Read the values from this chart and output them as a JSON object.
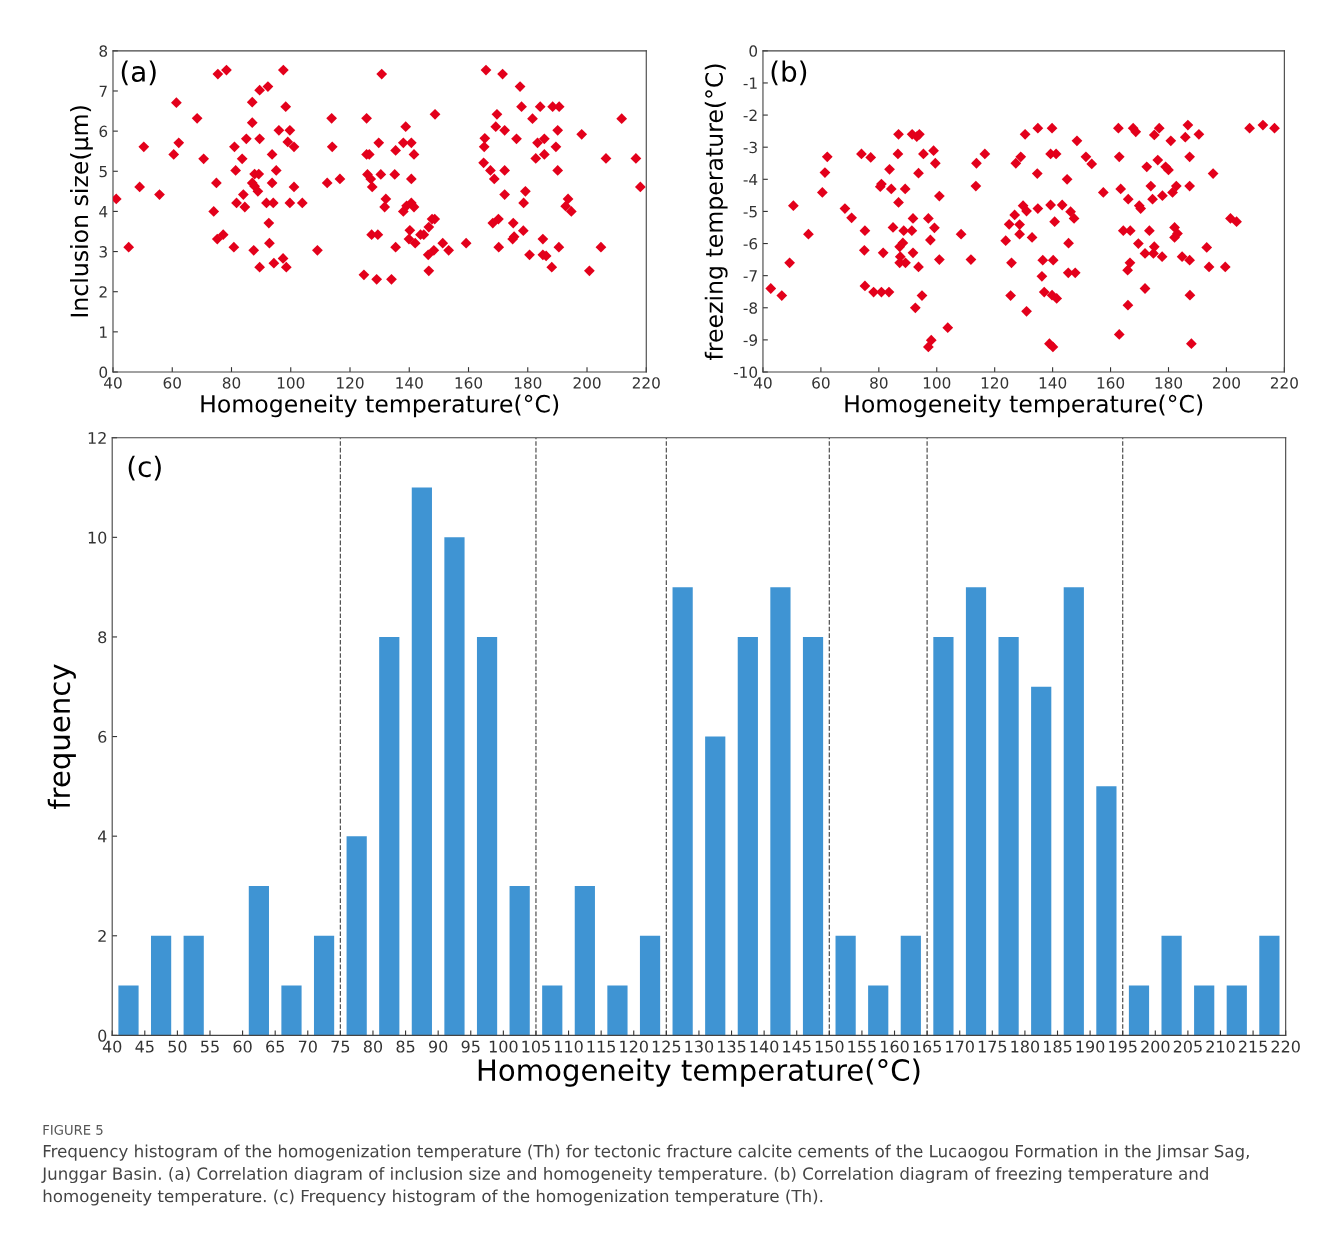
{
  "chart_data": [
    {
      "type": "scatter",
      "ylabel": "Inclusion size(μm)",
      "xlabel": "Homogeneity temperature(°C)",
      "annotations": [
        "(a)"
      ],
      "marker": "diamond",
      "grid": false,
      "xlim": [
        40,
        220
      ],
      "xticks": [
        40,
        60,
        80,
        100,
        120,
        140,
        160,
        180,
        200,
        220
      ],
      "ylim": [
        0,
        8
      ],
      "yticks": [
        0,
        1,
        2,
        3,
        4,
        5,
        6,
        7,
        8
      ],
      "series": [
        {
          "color": "#e3001b",
          "x": [
            41.1,
            45.3,
            49.0,
            50.4,
            55.7,
            60.5,
            61.4,
            62.2,
            68.4,
            70.6,
            74.0,
            74.9,
            75.2,
            75.4,
            77.2,
            78.3,
            80.8,
            81.0,
            81.4,
            81.7,
            83.6,
            84.0,
            84.5,
            85.0,
            87.0,
            87.0,
            87.0,
            87.5,
            87.8,
            87.8,
            88.9,
            89.2,
            89.5,
            89.5,
            89.5,
            91.8,
            92.3,
            92.6,
            92.8,
            93.7,
            93.7,
            94.1,
            94.3,
            95.1,
            96.0,
            97.4,
            97.5,
            98.3,
            98.5,
            99.0,
            99.7,
            99.7,
            101.1,
            101.1,
            103.9,
            109.0,
            112.3,
            113.8,
            114.0,
            116.6,
            124.7,
            125.6,
            125.6,
            126.5,
            125.9,
            127.0,
            127.5,
            127.3,
            129.4,
            129.0,
            130.7,
            129.7,
            130.4,
            135.4,
            135.1,
            132.1,
            131.7,
            135.4,
            134.0,
            138.8,
            138.0,
            140.7,
            141.6,
            140.7,
            138.0,
            139.1,
            140.7,
            141.6,
            140.2,
            139.9,
            142.0,
            143.8,
            144.9,
            146.6,
            147.7,
            148.6,
            146.4,
            148.3,
            146.6,
            151.3,
            153.3,
            159.2,
            148.7,
            165.9,
            171.5,
            177.4,
            177.9,
            184.2,
            188.4,
            190.6,
            181.6,
            169.6,
            169.2,
            172.2,
            176.2,
            165.5,
            165.3,
            183.3,
            185.6,
            189.5,
            190.1,
            182.7,
            185.6,
            165.1,
            167.4,
            168.7,
            172.2,
            190.1,
            198.2,
            211.7,
            206.4,
            216.5,
            218.0,
            172.2,
            179.2,
            178.6,
            193.6,
            192.8,
            194.7,
            168.2,
            170.1,
            175.1,
            178.5,
            175.4,
            174.9,
            170.2,
            185.1,
            180.6,
            185.1,
            186.2,
            190.5,
            188.1,
            204.7,
            200.8
          ],
          "values": [
            4.31,
            3.11,
            4.61,
            5.61,
            4.42,
            5.42,
            6.71,
            5.71,
            6.32,
            5.31,
            4.0,
            4.71,
            3.31,
            7.42,
            3.42,
            7.52,
            3.11,
            5.61,
            5.02,
            4.21,
            5.31,
            4.42,
            4.11,
            5.81,
            4.71,
            6.72,
            6.21,
            3.03,
            4.93,
            4.63,
            4.5,
            4.93,
            5.81,
            2.61,
            7.02,
            4.21,
            7.11,
            3.71,
            3.21,
            5.42,
            4.71,
            4.21,
            2.71,
            5.02,
            6.02,
            2.83,
            7.52,
            6.61,
            2.61,
            5.73,
            6.02,
            4.21,
            5.61,
            4.61,
            4.21,
            3.03,
            4.71,
            6.32,
            5.61,
            4.81,
            2.42,
            6.32,
            5.42,
            5.42,
            4.92,
            4.81,
            4.61,
            3.42,
            3.42,
            2.31,
            7.42,
            5.71,
            4.92,
            5.52,
            4.92,
            4.31,
            4.11,
            3.11,
            2.31,
            6.11,
            5.71,
            5.71,
            5.42,
            4.81,
            4.0,
            4.14,
            4.21,
            4.11,
            3.53,
            3.31,
            3.21,
            3.42,
            3.42,
            3.61,
            3.81,
            3.81,
            2.92,
            3.03,
            2.52,
            3.21,
            3.03,
            3.21,
            6.42,
            7.52,
            7.42,
            7.11,
            6.61,
            6.61,
            6.61,
            6.61,
            6.31,
            6.42,
            6.11,
            6.02,
            5.81,
            5.82,
            5.61,
            5.71,
            5.81,
            5.61,
            6.02,
            5.32,
            5.42,
            5.21,
            5.02,
            4.81,
            5.02,
            5.02,
            5.92,
            6.31,
            5.32,
            5.32,
            4.61,
            4.42,
            4.5,
            4.21,
            4.31,
            4.13,
            4.0,
            3.71,
            3.81,
            3.71,
            3.52,
            3.37,
            3.31,
            3.11,
            3.31,
            2.92,
            2.92,
            2.89,
            3.11,
            2.61,
            3.11,
            2.52
          ]
        }
      ]
    },
    {
      "type": "scatter",
      "ylabel": "freezing temperature(°C)",
      "xlabel": "Homogeneity temperature(°C)",
      "annotations": [
        "(b)"
      ],
      "marker": "diamond",
      "grid": false,
      "xlim": [
        40,
        220
      ],
      "xticks": [
        40,
        60,
        80,
        100,
        120,
        140,
        160,
        180,
        200,
        220
      ],
      "ylim": [
        -10,
        0
      ],
      "yticks": [
        -10,
        -9,
        -8,
        -7,
        -6,
        -5,
        -4,
        -3,
        -2,
        -1,
        0
      ],
      "series": [
        {
          "color": "#e3001b",
          "x": [
            42.7,
            46.5,
            49.2,
            50.5,
            55.7,
            60.5,
            61.4,
            62.2,
            68.3,
            70.6,
            74.0,
            77.2,
            75.2,
            75.0,
            75.2,
            78.2,
            80.9,
            83.5,
            80.9,
            80.5,
            81.5,
            83.7,
            84.3,
            84.9,
            86.8,
            86.6,
            86.8,
            87.2,
            87.4,
            87.2,
            88.6,
            88.3,
            89.1,
            89.2,
            91.5,
            93.1,
            94.0,
            91.4,
            91.8,
            91.8,
            93.7,
            93.7,
            95.4,
            97.1,
            97.8,
            98.9,
            99.5,
            99.2,
            100.9,
            100.9,
            94.9,
            92.6,
            98.1,
            97.1,
            103.8,
            108.4,
            111.8,
            113.5,
            113.7,
            116.6,
            130.5,
            129.0,
            127.3,
            129.8,
            131.0,
            126.9,
            125.0,
            128.6,
            123.8,
            128.6,
            125.8,
            125.5,
            131.0,
            134.9,
            139.8,
            134.7,
            139.3,
            141.2,
            148.4,
            151.5,
            153.5,
            145.0,
            134.9,
            139.3,
            143.3,
            140.7,
            146.2,
            147.4,
            132.9,
            145.5,
            136.6,
            140.2,
            136.3,
            145.4,
            147.8,
            137.1,
            139.8,
            141.4,
            138.9,
            140.1,
            157.5,
            162.7,
            163.0,
            163.5,
            166.1,
            169.9,
            170.4,
            167.8,
            168.7,
            175.1,
            176.8,
            180.8,
            185.8,
            186.7,
            190.5,
            187.3,
            172.5,
            176.3,
            179.0,
            180.0,
            195.4,
            173.9,
            182.7,
            187.3,
            174.5,
            177.9,
            181.4,
            201.4,
            203.5,
            164.4,
            166.8,
            173.4,
            182.1,
            183.1,
            182.1,
            169.6,
            171.9,
            174.8,
            175.1,
            177.8,
            184.7,
            187.3,
            193.2,
            194.0,
            199.6,
            166.7,
            165.9,
            171.9,
            166.0,
            187.4,
            163.0,
            187.9,
            208.0,
            212.6,
            216.6
          ],
          "values": [
            -7.4,
            -7.62,
            -6.6,
            -4.82,
            -5.71,
            -4.41,
            -3.79,
            -3.3,
            -4.91,
            -5.2,
            -3.21,
            -3.32,
            -5.6,
            -6.21,
            -7.32,
            -7.51,
            -7.51,
            -7.51,
            -4.15,
            -4.23,
            -6.29,
            -3.69,
            -4.3,
            -5.5,
            -2.6,
            -3.21,
            -4.72,
            -6.1,
            -6.41,
            -6.6,
            -5.6,
            -5.98,
            -4.3,
            -6.6,
            -2.6,
            -2.67,
            -2.6,
            -5.6,
            -5.22,
            -6.29,
            -3.81,
            -6.73,
            -3.21,
            -5.22,
            -5.89,
            -3.11,
            -3.5,
            -5.51,
            -4.52,
            -6.5,
            -7.62,
            -8.0,
            -9.01,
            -9.22,
            -8.62,
            -5.71,
            -6.5,
            -4.21,
            -3.5,
            -3.21,
            -2.6,
            -3.3,
            -3.5,
            -4.82,
            -4.99,
            -5.11,
            -5.4,
            -5.41,
            -5.91,
            -5.71,
            -6.6,
            -7.62,
            -8.11,
            -2.41,
            -2.41,
            -3.82,
            -3.21,
            -3.21,
            -2.8,
            -3.3,
            -3.52,
            -4.0,
            -4.91,
            -4.8,
            -4.8,
            -5.32,
            -5.01,
            -5.22,
            -5.81,
            -5.99,
            -6.52,
            -6.52,
            -7.02,
            -6.91,
            -6.91,
            -7.51,
            -7.61,
            -7.71,
            -9.12,
            -9.22,
            -4.41,
            -2.41,
            -3.3,
            -4.3,
            -4.62,
            -4.82,
            -4.91,
            -2.41,
            -2.52,
            -2.62,
            -2.41,
            -2.8,
            -2.69,
            -2.31,
            -2.6,
            -3.3,
            -3.61,
            -3.4,
            -3.61,
            -3.71,
            -3.82,
            -4.21,
            -4.21,
            -4.21,
            -4.62,
            -4.51,
            -4.41,
            -5.22,
            -5.32,
            -5.6,
            -5.6,
            -5.6,
            -5.5,
            -5.69,
            -5.81,
            -6.0,
            -6.31,
            -6.31,
            -6.1,
            -6.41,
            -6.41,
            -6.52,
            -6.12,
            -6.73,
            -6.73,
            -6.6,
            -6.83,
            -7.4,
            -7.92,
            -7.61,
            -8.83,
            -9.12,
            -2.41,
            -2.31,
            -2.41
          ]
        }
      ]
    },
    {
      "type": "histogram",
      "ylabel": "frequency",
      "xlabel": "Homogeneity temperature(°C)",
      "color": "#3f94d3",
      "grid": false,
      "annotations": [
        "(c)",
        "FIGURE 5",
        "Frequency histogram of the homogenization temperature (Th) for tectonic fracture calcite cements of the Lucaogou Formation in the Jimsar Sag, Junggar Basin. (a) Correlation diagram of inclusion size and homogeneity temperature. (b) Correlation diagram of freezing temperature and homogeneity temperature. (c) Frequency histogram of the homogenization temperature (Th)."
      ],
      "bins": [
        40,
        45,
        50,
        55,
        60,
        65,
        70,
        75,
        80,
        85,
        90,
        95,
        100,
        105,
        110,
        115,
        120,
        125,
        130,
        135,
        140,
        145,
        150,
        155,
        160,
        165,
        170,
        175,
        180,
        185,
        190,
        195,
        200,
        205,
        210,
        215,
        220
      ],
      "values": [
        1,
        2,
        2,
        0,
        3,
        1,
        2,
        4,
        8,
        11,
        10,
        8,
        3,
        1,
        3,
        1,
        2,
        9,
        6,
        8,
        9,
        8,
        2,
        1,
        2,
        8,
        9,
        8,
        7,
        9,
        5,
        1,
        2,
        1,
        1,
        2
      ],
      "xlim": [
        40,
        220
      ],
      "xticks": [
        40,
        45,
        50,
        55,
        60,
        65,
        70,
        75,
        80,
        85,
        90,
        95,
        100,
        105,
        110,
        115,
        120,
        125,
        130,
        135,
        140,
        145,
        150,
        155,
        160,
        165,
        170,
        175,
        180,
        185,
        190,
        195,
        200,
        205,
        210,
        215,
        220
      ],
      "ylim": [
        0,
        12
      ],
      "yticks": [
        0,
        2,
        4,
        6,
        8,
        10,
        12
      ],
      "ref_lines": [
        {
          "axis": "x",
          "value": 75,
          "color": "#555555",
          "line_style": "dashed"
        },
        {
          "axis": "x",
          "value": 105,
          "color": "#555555",
          "line_style": "dashed"
        },
        {
          "axis": "x",
          "value": 125,
          "color": "#555555",
          "line_style": "dashed"
        },
        {
          "axis": "x",
          "value": 150,
          "color": "#555555",
          "line_style": "dashed"
        },
        {
          "axis": "x",
          "value": 165,
          "color": "#555555",
          "line_style": "dashed"
        },
        {
          "axis": "x",
          "value": 195,
          "color": "#555555",
          "line_style": "dashed"
        }
      ]
    }
  ]
}
